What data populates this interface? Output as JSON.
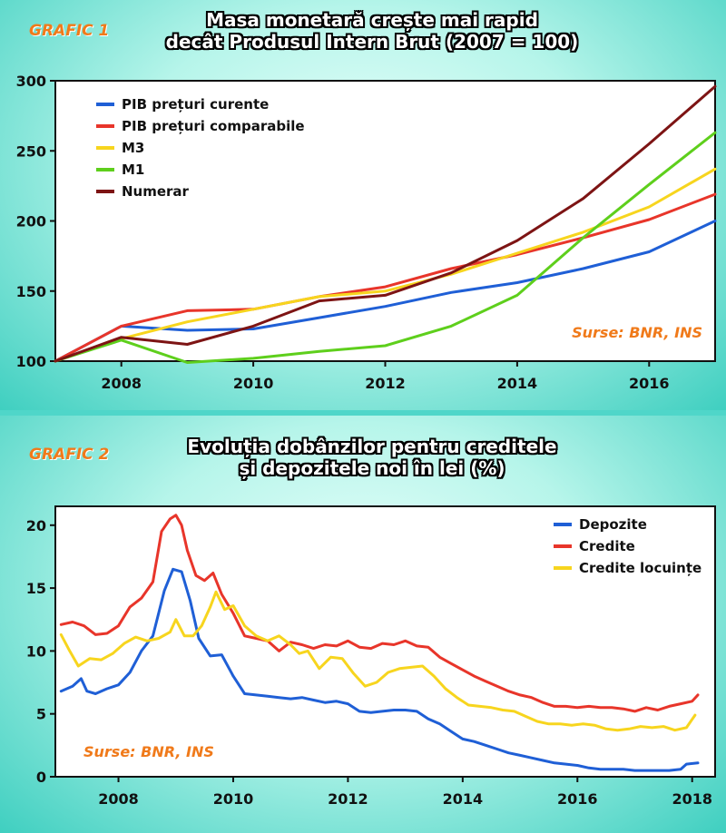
{
  "chart_data": [
    {
      "type": "line",
      "tag": "GRAFIC 1",
      "title_lines": [
        "Masa monetară    crește mai rapid",
        "decât Produsul Intern Brut (2007 = 100)"
      ],
      "source": "Surse: BNR, INS",
      "xlim": [
        2007,
        2017
      ],
      "ylim": [
        100,
        300
      ],
      "xticks": [
        2008,
        2010,
        2012,
        2014,
        2016
      ],
      "yticks": [
        100,
        150,
        200,
        250,
        300
      ],
      "grid": false,
      "legend_position": "top-left",
      "x": [
        2007,
        2008,
        2009,
        2010,
        2011,
        2012,
        2013,
        2014,
        2015,
        2016,
        2017
      ],
      "series": [
        {
          "name": "PIB prețuri curente",
          "color": "#1f5fd6",
          "values": [
            100,
            125,
            122,
            123,
            131,
            139,
            149,
            156,
            166,
            178,
            200
          ]
        },
        {
          "name": "PIB prețuri comparabile",
          "color": "#e8352a",
          "values": [
            100,
            125,
            136,
            137,
            146,
            153,
            166,
            176,
            188,
            201,
            219
          ]
        },
        {
          "name": "M3",
          "color": "#f7d51e",
          "values": [
            100,
            116,
            128,
            137,
            146,
            150,
            162,
            177,
            192,
            210,
            237
          ]
        },
        {
          "name": "M1",
          "color": "#5ecf1c",
          "values": [
            100,
            115,
            99,
            102,
            107,
            111,
            125,
            147,
            188,
            226,
            263
          ]
        },
        {
          "name": "Numerar",
          "color": "#7d1414",
          "values": [
            100,
            117,
            112,
            125,
            143,
            147,
            163,
            186,
            216,
            255,
            296
          ]
        }
      ]
    },
    {
      "type": "line",
      "tag": "GRAFIC 2",
      "title_lines": [
        "Evoluția dobânzilor pentru creditele",
        "și depozitele noi în lei (%)"
      ],
      "source": "Surse: BNR, INS",
      "xlim": [
        2006.9,
        2018.4
      ],
      "ylim": [
        0,
        21.5
      ],
      "xticks": [
        2008,
        2010,
        2012,
        2014,
        2016,
        2018
      ],
      "yticks": [
        0,
        5,
        10,
        15,
        20
      ],
      "grid": false,
      "legend_position": "top-right",
      "series": [
        {
          "name": "Depozite",
          "color": "#1f5fd6",
          "x": [
            2007.0,
            2007.2,
            2007.35,
            2007.45,
            2007.6,
            2007.8,
            2008.0,
            2008.2,
            2008.4,
            2008.6,
            2008.8,
            2008.95,
            2009.1,
            2009.25,
            2009.4,
            2009.6,
            2009.8,
            2010.0,
            2010.2,
            2010.4,
            2010.6,
            2010.8,
            2011.0,
            2011.2,
            2011.4,
            2011.6,
            2011.8,
            2012.0,
            2012.2,
            2012.4,
            2012.6,
            2012.8,
            2013.0,
            2013.2,
            2013.4,
            2013.6,
            2013.8,
            2014.0,
            2014.2,
            2014.4,
            2014.6,
            2014.8,
            2015.0,
            2015.2,
            2015.4,
            2015.6,
            2015.8,
            2016.0,
            2016.2,
            2016.4,
            2016.6,
            2016.8,
            2017.0,
            2017.2,
            2017.4,
            2017.6,
            2017.8,
            2017.9,
            2018.1
          ],
          "values": [
            6.8,
            7.2,
            7.8,
            6.8,
            6.6,
            7.0,
            7.3,
            8.3,
            10.0,
            11.2,
            14.8,
            16.5,
            16.3,
            14.0,
            11.0,
            9.6,
            9.7,
            8.0,
            6.6,
            6.5,
            6.4,
            6.3,
            6.2,
            6.3,
            6.1,
            5.9,
            6.0,
            5.8,
            5.2,
            5.1,
            5.2,
            5.3,
            5.3,
            5.2,
            4.6,
            4.2,
            3.6,
            3.0,
            2.8,
            2.5,
            2.2,
            1.9,
            1.7,
            1.5,
            1.3,
            1.1,
            1.0,
            0.9,
            0.7,
            0.6,
            0.6,
            0.6,
            0.5,
            0.5,
            0.5,
            0.5,
            0.6,
            1.0,
            1.1
          ]
        },
        {
          "name": "Credite",
          "color": "#e8352a",
          "x": [
            2007.0,
            2007.2,
            2007.4,
            2007.6,
            2007.8,
            2008.0,
            2008.2,
            2008.4,
            2008.6,
            2008.75,
            2008.9,
            2009.0,
            2009.1,
            2009.2,
            2009.35,
            2009.5,
            2009.65,
            2009.8,
            2010.0,
            2010.2,
            2010.4,
            2010.6,
            2010.8,
            2011.0,
            2011.2,
            2011.4,
            2011.6,
            2011.8,
            2012.0,
            2012.2,
            2012.4,
            2012.6,
            2012.8,
            2013.0,
            2013.2,
            2013.4,
            2013.6,
            2013.8,
            2014.0,
            2014.2,
            2014.4,
            2014.6,
            2014.8,
            2015.0,
            2015.2,
            2015.4,
            2015.6,
            2015.8,
            2016.0,
            2016.2,
            2016.4,
            2016.6,
            2016.8,
            2017.0,
            2017.2,
            2017.4,
            2017.6,
            2017.8,
            2018.0,
            2018.1
          ],
          "values": [
            12.1,
            12.3,
            12.0,
            11.3,
            11.4,
            12.0,
            13.5,
            14.2,
            15.5,
            19.5,
            20.5,
            20.8,
            20.0,
            18.0,
            16.0,
            15.6,
            16.2,
            14.5,
            13.0,
            11.2,
            11.0,
            10.8,
            10.0,
            10.7,
            10.5,
            10.2,
            10.5,
            10.4,
            10.8,
            10.3,
            10.2,
            10.6,
            10.5,
            10.8,
            10.4,
            10.3,
            9.5,
            9.0,
            8.5,
            8.0,
            7.6,
            7.2,
            6.8,
            6.5,
            6.3,
            5.9,
            5.6,
            5.6,
            5.5,
            5.6,
            5.5,
            5.5,
            5.4,
            5.2,
            5.5,
            5.3,
            5.6,
            5.8,
            6.0,
            6.5
          ]
        },
        {
          "name": "Credite locuințe",
          "color": "#f7d51e",
          "x": [
            2007.0,
            2007.15,
            2007.3,
            2007.5,
            2007.7,
            2007.9,
            2008.1,
            2008.3,
            2008.5,
            2008.7,
            2008.9,
            2009.0,
            2009.15,
            2009.3,
            2009.45,
            2009.6,
            2009.7,
            2009.85,
            2010.0,
            2010.2,
            2010.4,
            2010.6,
            2010.8,
            2011.0,
            2011.15,
            2011.3,
            2011.5,
            2011.7,
            2011.9,
            2012.1,
            2012.3,
            2012.5,
            2012.7,
            2012.9,
            2013.1,
            2013.3,
            2013.5,
            2013.7,
            2013.9,
            2014.1,
            2014.3,
            2014.5,
            2014.7,
            2014.9,
            2015.1,
            2015.3,
            2015.5,
            2015.7,
            2015.9,
            2016.1,
            2016.3,
            2016.5,
            2016.7,
            2016.9,
            2017.1,
            2017.3,
            2017.5,
            2017.7,
            2017.9,
            2018.05
          ],
          "values": [
            11.3,
            10.0,
            8.8,
            9.4,
            9.3,
            9.8,
            10.6,
            11.1,
            10.8,
            11.0,
            11.5,
            12.5,
            11.2,
            11.2,
            12.0,
            13.5,
            14.7,
            13.3,
            13.6,
            12.0,
            11.2,
            10.8,
            11.2,
            10.5,
            9.8,
            10.0,
            8.6,
            9.5,
            9.4,
            8.2,
            7.2,
            7.5,
            8.3,
            8.6,
            8.7,
            8.8,
            8.0,
            7.0,
            6.3,
            5.7,
            5.6,
            5.5,
            5.3,
            5.2,
            4.8,
            4.4,
            4.2,
            4.2,
            4.1,
            4.2,
            4.1,
            3.8,
            3.7,
            3.8,
            4.0,
            3.9,
            4.0,
            3.7,
            3.9,
            4.9
          ]
        }
      ]
    }
  ]
}
